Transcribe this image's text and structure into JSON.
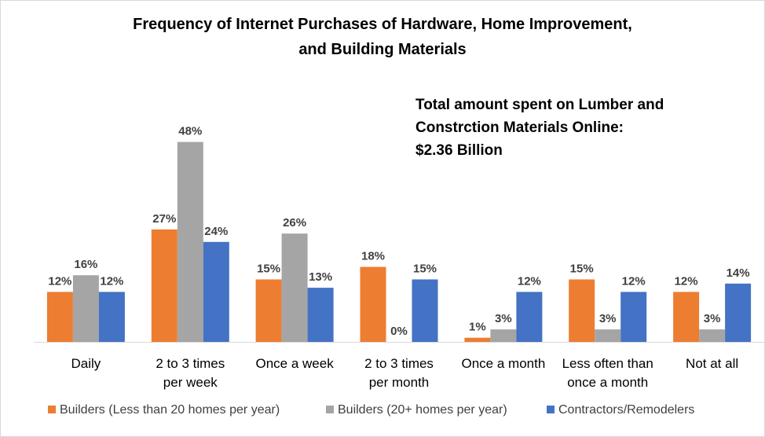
{
  "chart_data": {
    "type": "bar",
    "title_lines": [
      "Frequency of Internet Purchases of Hardware, Home Improvement,",
      "and Building Materials"
    ],
    "annotation_lines": [
      "Total amount spent on Lumber and",
      "Constrction Materials Online:",
      "$2.36 Billion"
    ],
    "categories": [
      [
        "Daily"
      ],
      [
        "2 to 3 times",
        "per week"
      ],
      [
        "Once a week"
      ],
      [
        "2 to 3 times",
        "per month"
      ],
      [
        "Once a month"
      ],
      [
        "Less often than",
        "once a month"
      ],
      [
        "Not at all"
      ]
    ],
    "series": [
      {
        "name": "Builders (Less than 20 homes per year)",
        "color": "#ED7D31",
        "values": [
          12,
          27,
          15,
          18,
          1,
          15,
          12
        ]
      },
      {
        "name": "Builders (20+ homes per year)",
        "color": "#A5A5A5",
        "values": [
          16,
          48,
          26,
          0,
          3,
          3,
          3
        ]
      },
      {
        "name": "Contractors/Remodelers",
        "color": "#4472C4",
        "values": [
          12,
          24,
          13,
          15,
          12,
          12,
          14
        ]
      }
    ],
    "value_suffix": "%",
    "ylim": [
      0,
      48
    ],
    "grid": false,
    "legend_position": "bottom",
    "axis_color": "#d9d9d9"
  }
}
